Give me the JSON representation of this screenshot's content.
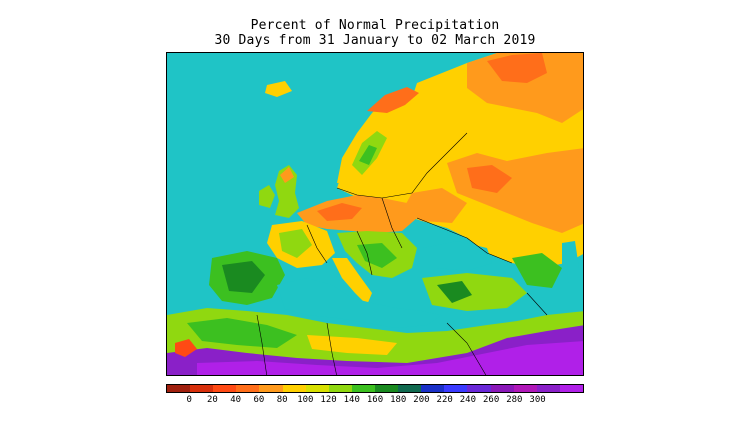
{
  "title": {
    "line1": "Percent of Normal Precipitation",
    "line2": "30 Days from 31 January to 02 March 2019"
  },
  "map": {
    "ocean_color": "#1fc4c6",
    "region": "Europe, North Africa and Middle East"
  },
  "legend": {
    "colors": [
      "#a0200e",
      "#d8300c",
      "#ff4a14",
      "#ff6e1a",
      "#ff9a1c",
      "#ffd000",
      "#d8e000",
      "#90d810",
      "#3cc020",
      "#1a8a20",
      "#106a50",
      "#1a30c8",
      "#3a3aff",
      "#6a28d8",
      "#8a18b8",
      "#b018b8",
      "#8a20c8",
      "#b020e8"
    ],
    "labels": [
      "0",
      "20",
      "40",
      "60",
      "80",
      "100",
      "120",
      "140",
      "160",
      "180",
      "200",
      "220",
      "240",
      "260",
      "280",
      "300"
    ]
  }
}
